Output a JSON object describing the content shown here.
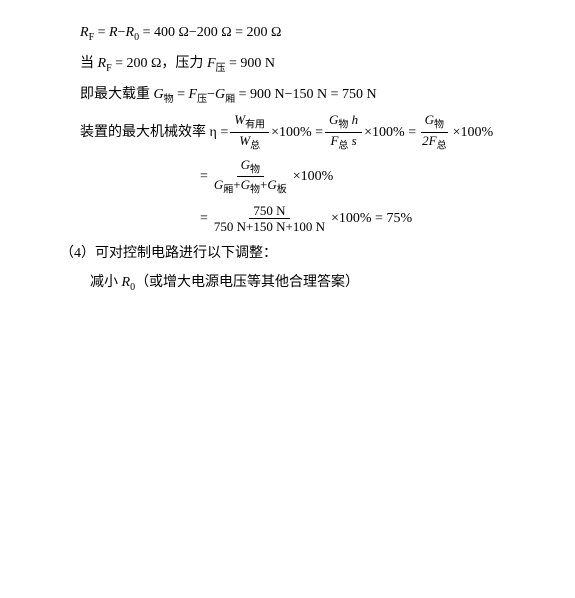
{
  "line1": {
    "prefix": "R",
    "sub1": "F",
    "eq1": " = ",
    "r2": "R",
    "minus": "−",
    "r3": "R",
    "sub3": "0",
    "rest": " = 400 Ω−200 Ω = 200 Ω"
  },
  "line2": {
    "when": "当 ",
    "rf": "R",
    "rfsub": "F",
    "val": " = 200 Ω，压力 ",
    "f": "F",
    "fsub": "压",
    "end": " = 900 N"
  },
  "line3": {
    "prefix": "即最大载重 ",
    "g1": "G",
    "g1sub": "物",
    "eq": " = ",
    "f": "F",
    "fsub": "压",
    "minus": "−",
    "g2": "G",
    "g2sub": "厢",
    "rest": " = 900 N−150 N = 750 N"
  },
  "line4": {
    "prefix": "装置的最大机械效率 η = ",
    "f1num_w": "W",
    "f1num_sub": "有用",
    "f1den_w": "W",
    "f1den_sub": "总",
    "times": "×100% = ",
    "f2num_g": "G",
    "f2num_gsub": "物",
    "f2num_h": " h",
    "f2den_f": "F",
    "f2den_fsub": "总",
    "f2den_s": " s",
    "times2": "×100% = ",
    "f3num_g": "G",
    "f3num_gsub": "物",
    "f3den_2f": "2F",
    "f3den_sub": "总",
    "end": "×100%"
  },
  "line5": {
    "eq": "= ",
    "num_g": "G",
    "num_gsub": "物",
    "den_g1": "G",
    "den_g1sub": "厢",
    "den_plus1": "+",
    "den_g2": "G",
    "den_g2sub": "物",
    "den_plus2": "+",
    "den_g3": "G",
    "den_g3sub": "板",
    "end": "×100%"
  },
  "line6": {
    "eq": "= ",
    "num": "750 N",
    "den": "750 N+150 N+100 N",
    "end": "×100% = 75%"
  },
  "line7": "（4）可对控制电路进行以下调整：",
  "line8_pre": "减小 ",
  "line8_r": "R",
  "line8_sub": "0",
  "line8_post": "（或增大电源电压等其他合理答案）"
}
